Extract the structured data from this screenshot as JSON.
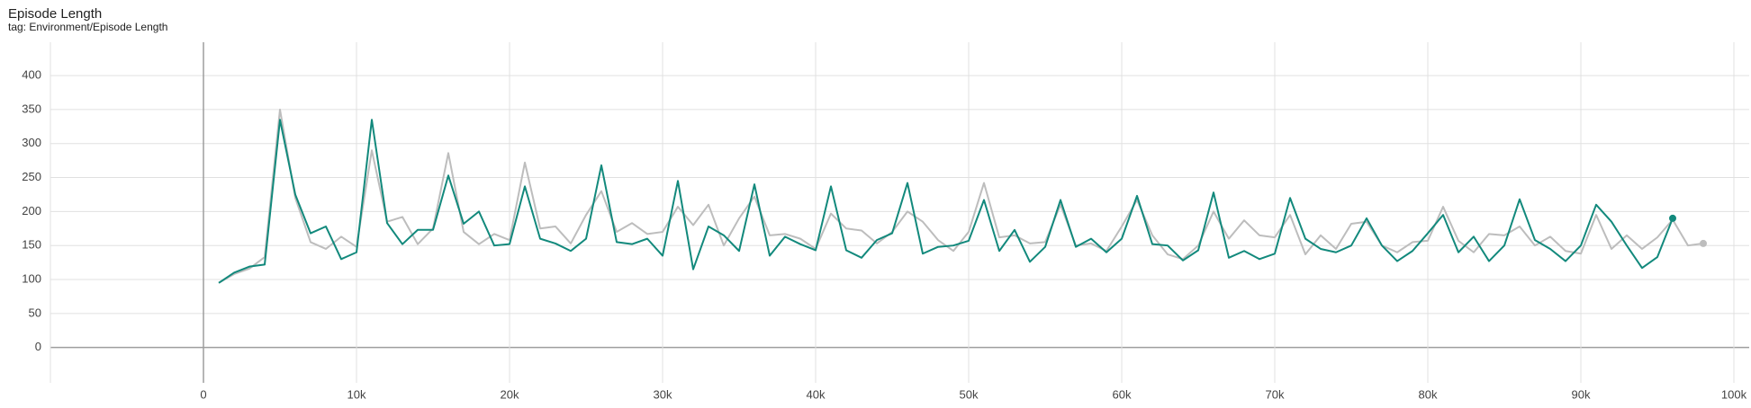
{
  "chart_data": {
    "type": "line",
    "title": "Episode Length",
    "subtitle": "tag: Environment/Episode Length",
    "xlim": [
      -10000,
      101000
    ],
    "ylim": [
      -52,
      449
    ],
    "xticks": [
      0,
      {
        "value": 10000,
        "label": "10k"
      },
      {
        "value": 20000,
        "label": "20k"
      },
      {
        "value": 30000,
        "label": "30k"
      },
      {
        "value": 40000,
        "label": "40k"
      },
      {
        "value": 50000,
        "label": "50k"
      },
      {
        "value": 60000,
        "label": "60k"
      },
      {
        "value": 70000,
        "label": "70k"
      },
      {
        "value": 80000,
        "label": "80k"
      },
      {
        "value": 90000,
        "label": "90k"
      },
      {
        "value": 100000,
        "label": "100k"
      }
    ],
    "yticks": [
      0,
      50,
      100,
      150,
      200,
      250,
      300,
      350,
      400
    ],
    "grid": true,
    "series": [
      {
        "color": "#bdbdbd",
        "x": [
          1000,
          2000,
          3000,
          4000,
          5000,
          6000,
          7000,
          8000,
          9000,
          10000,
          11000,
          12000,
          13000,
          14000,
          15000,
          16000,
          17000,
          18000,
          19000,
          20000,
          21000,
          22000,
          23000,
          24000,
          25000,
          26000,
          27000,
          28000,
          29000,
          30000,
          31000,
          32000,
          33000,
          34000,
          35000,
          36000,
          37000,
          38000,
          39000,
          40000,
          41000,
          42000,
          43000,
          44000,
          45000,
          46000,
          47000,
          48000,
          49000,
          50000,
          51000,
          52000,
          53000,
          54000,
          55000,
          56000,
          57000,
          58000,
          59000,
          60000,
          61000,
          62000,
          63000,
          64000,
          65000,
          66000,
          67000,
          68000,
          69000,
          70000,
          71000,
          72000,
          73000,
          74000,
          75000,
          76000,
          77000,
          78000,
          79000,
          80000,
          81000,
          82000,
          83000,
          84000,
          85000,
          86000,
          87000,
          88000,
          89000,
          90000,
          91000,
          92000,
          93000,
          94000,
          95000,
          96000,
          97000,
          98000
        ],
        "values": [
          95,
          108,
          116,
          133,
          350,
          220,
          155,
          145,
          163,
          148,
          290,
          185,
          192,
          152,
          175,
          286,
          170,
          152,
          167,
          158,
          272,
          175,
          178,
          153,
          195,
          230,
          170,
          183,
          167,
          170,
          207,
          180,
          210,
          150,
          190,
          222,
          165,
          167,
          160,
          145,
          197,
          175,
          172,
          153,
          170,
          200,
          185,
          158,
          142,
          170,
          242,
          162,
          165,
          153,
          155,
          210,
          150,
          153,
          142,
          178,
          217,
          165,
          137,
          130,
          150,
          200,
          160,
          187,
          165,
          162,
          195,
          137,
          165,
          145,
          182,
          185,
          150,
          140,
          155,
          157,
          207,
          157,
          140,
          167,
          165,
          178,
          150,
          163,
          142,
          138,
          195,
          145,
          165,
          145,
          162,
          188,
          150,
          153
        ]
      },
      {
        "color": "#12897c",
        "x": [
          1000,
          2000,
          3000,
          4000,
          5000,
          6000,
          7000,
          8000,
          9000,
          10000,
          11000,
          12000,
          13000,
          14000,
          15000,
          16000,
          17000,
          18000,
          19000,
          20000,
          21000,
          22000,
          23000,
          24000,
          25000,
          26000,
          27000,
          28000,
          29000,
          30000,
          31000,
          32000,
          33000,
          34000,
          35000,
          36000,
          37000,
          38000,
          39000,
          40000,
          41000,
          42000,
          43000,
          44000,
          45000,
          46000,
          47000,
          48000,
          49000,
          50000,
          51000,
          52000,
          53000,
          54000,
          55000,
          56000,
          57000,
          58000,
          59000,
          60000,
          61000,
          62000,
          63000,
          64000,
          65000,
          66000,
          67000,
          68000,
          69000,
          70000,
          71000,
          72000,
          73000,
          74000,
          75000,
          76000,
          77000,
          78000,
          79000,
          80000,
          81000,
          82000,
          83000,
          84000,
          85000,
          86000,
          87000,
          88000,
          89000,
          90000,
          91000,
          92000,
          93000,
          94000,
          95000,
          96000
        ],
        "values": [
          95,
          110,
          119,
          122,
          335,
          225,
          168,
          178,
          130,
          140,
          335,
          183,
          152,
          173,
          173,
          253,
          182,
          200,
          150,
          152,
          237,
          160,
          153,
          142,
          160,
          268,
          155,
          152,
          160,
          135,
          245,
          115,
          178,
          165,
          142,
          240,
          135,
          163,
          152,
          143,
          237,
          143,
          132,
          158,
          168,
          242,
          138,
          148,
          150,
          157,
          217,
          142,
          173,
          126,
          148,
          217,
          148,
          160,
          140,
          160,
          223,
          152,
          150,
          128,
          143,
          228,
          132,
          142,
          130,
          138,
          220,
          160,
          145,
          140,
          150,
          190,
          150,
          127,
          142,
          168,
          195,
          140,
          163,
          127,
          150,
          218,
          158,
          145,
          127,
          150,
          210,
          185,
          150,
          117,
          133,
          190
        ]
      }
    ]
  }
}
